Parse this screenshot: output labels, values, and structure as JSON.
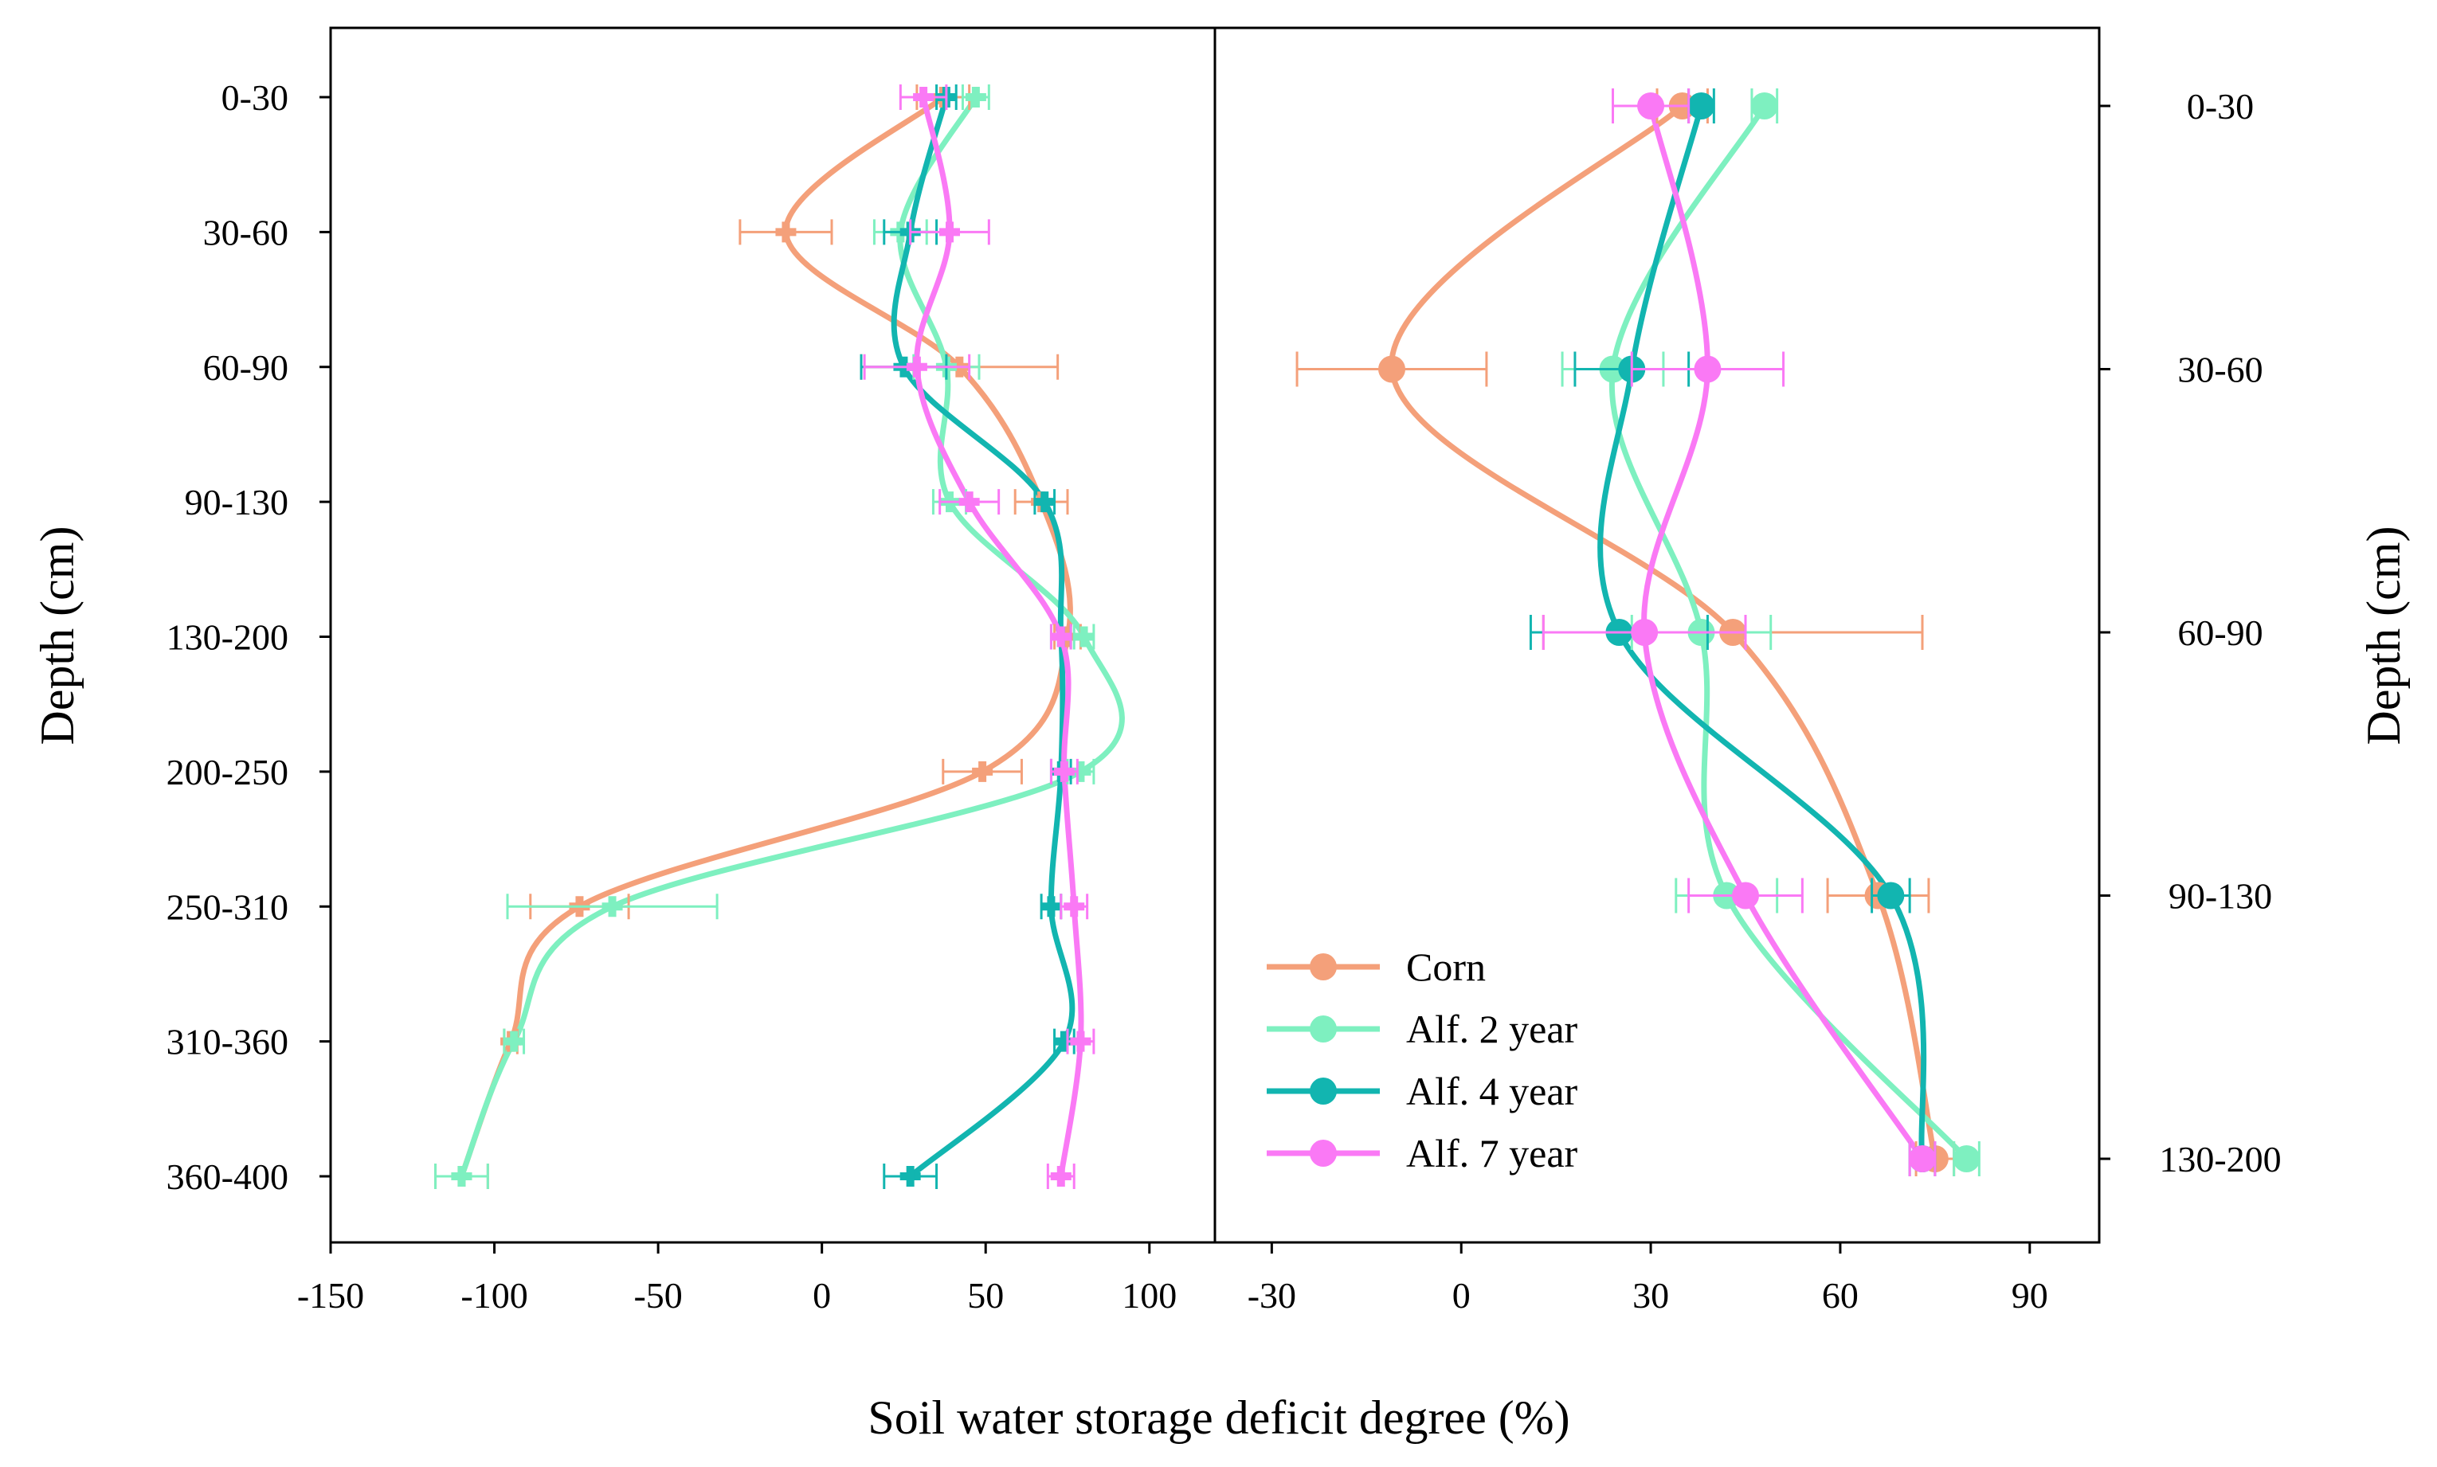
{
  "colors": {
    "Corn": "#F4A07A",
    "Alf. 2 year": "#7EF0C0",
    "Alf. 4 year": "#12B5B0",
    "Alf. 7 year": "#FA79F5"
  },
  "shared_xlabel": "Soil water storage deficit degree (%)",
  "chart_data": [
    {
      "type": "line",
      "title": "",
      "orientation": "horizontal-value vs depth",
      "xlabel": "",
      "ylabel": "Depth (cm)",
      "xlim": [
        -150,
        120
      ],
      "xticks": [
        -150,
        -100,
        -50,
        0,
        50,
        100
      ],
      "categories": [
        "0-30",
        "30-60",
        "60-90",
        "90-130",
        "130-200",
        "200-250",
        "250-310",
        "310-360",
        "360-400"
      ],
      "series": [
        {
          "name": "Corn",
          "values": [
            37,
            -11,
            42,
            67,
            75,
            49,
            -74,
            -95,
            -110
          ],
          "errors": [
            8,
            14,
            30,
            8,
            4,
            12,
            15,
            2,
            8
          ]
        },
        {
          "name": "Alf. 2 year",
          "values": [
            47,
            24,
            38,
            39,
            80,
            79,
            -64,
            -94,
            -110
          ],
          "errors": [
            4,
            8,
            10,
            5,
            3,
            4,
            32,
            3,
            8
          ]
        },
        {
          "name": "Alf. 4 year",
          "values": [
            38,
            27,
            25,
            68,
            73,
            73,
            70,
            74,
            27
          ],
          "errors": [
            3,
            8,
            13,
            3,
            3,
            3,
            3,
            3,
            8
          ]
        },
        {
          "name": "Alf. 7 year",
          "values": [
            31,
            39,
            29,
            45,
            73,
            74,
            77,
            79,
            73
          ],
          "errors": [
            7,
            12,
            16,
            9,
            3,
            4,
            4,
            4,
            4
          ]
        }
      ]
    },
    {
      "type": "line",
      "title": "",
      "orientation": "horizontal-value vs depth",
      "xlabel": "",
      "ylabel": "Depth (cm)",
      "xlim": [
        -39,
        101
      ],
      "xticks": [
        -30,
        0,
        30,
        60,
        90
      ],
      "categories": [
        "0-30",
        "30-60",
        "60-90",
        "90-130",
        "130-200"
      ],
      "legend_position": "bottom-left",
      "series": [
        {
          "name": "Corn",
          "values": [
            35,
            -11,
            43,
            66,
            75
          ],
          "errors": [
            4,
            15,
            30,
            8,
            3
          ]
        },
        {
          "name": "Alf. 2 year",
          "values": [
            48,
            24,
            38,
            42,
            80
          ],
          "errors": [
            2,
            8,
            11,
            8,
            2
          ]
        },
        {
          "name": "Alf. 4 year",
          "values": [
            38,
            27,
            25,
            68,
            73
          ],
          "errors": [
            2,
            9,
            14,
            3,
            2
          ]
        },
        {
          "name": "Alf. 7 year",
          "values": [
            30,
            39,
            29,
            45,
            73
          ],
          "errors": [
            6,
            12,
            16,
            9,
            2
          ]
        }
      ]
    }
  ]
}
